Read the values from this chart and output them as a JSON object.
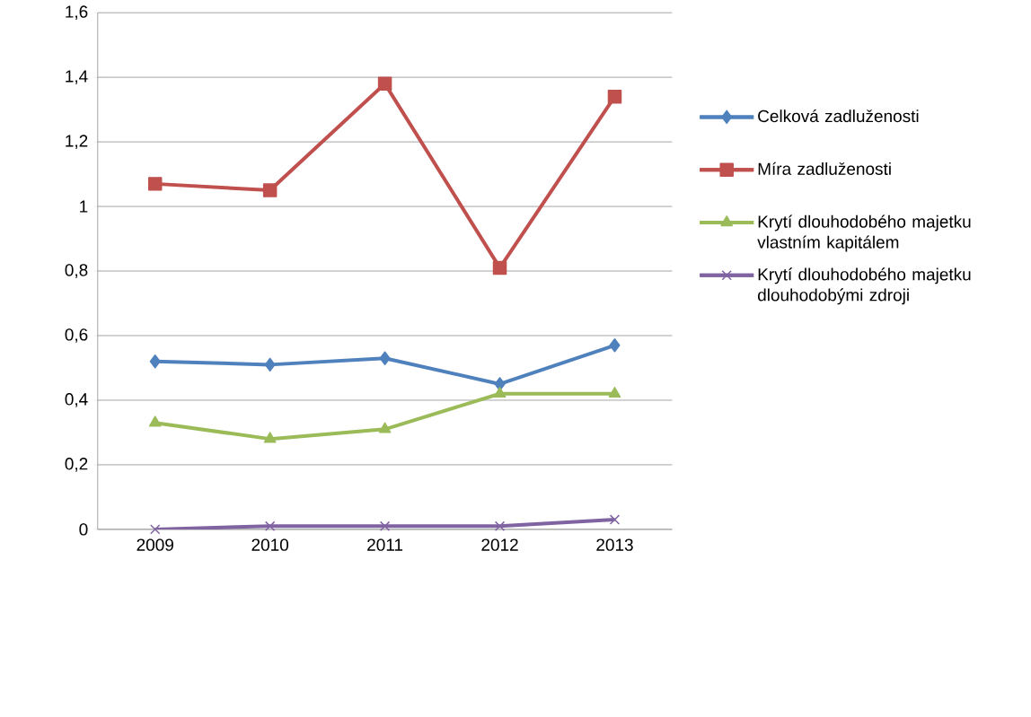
{
  "chart_data": {
    "type": "line",
    "categories": [
      "2009",
      "2010",
      "2011",
      "2012",
      "2013"
    ],
    "series": [
      {
        "name": "Celková zadluženosti",
        "color": "#4f81bd",
        "marker": "diamond",
        "values": [
          0.52,
          0.51,
          0.53,
          0.45,
          0.57
        ]
      },
      {
        "name": "Míra zadluženosti",
        "color": "#c0504d",
        "marker": "square",
        "values": [
          1.07,
          1.05,
          1.38,
          0.81,
          1.34
        ]
      },
      {
        "name": "Krytí dlouhodobého majetku vlastním kapitálem",
        "color": "#9bbb59",
        "marker": "triangle",
        "values": [
          0.33,
          0.28,
          0.31,
          0.42,
          0.42
        ]
      },
      {
        "name": "Krytí dlouhodobého majetku dlouhodobými zdroji",
        "color": "#8064a2",
        "marker": "cross",
        "values": [
          0,
          0.01,
          0.01,
          0.01,
          0.03
        ]
      }
    ],
    "ylim": [
      0,
      1.6
    ],
    "yticks": [
      0,
      {
        "value": 0.2,
        "label": "0,2"
      },
      {
        "value": 0.4,
        "label": "0,4"
      },
      {
        "value": 0.6,
        "label": "0,6"
      },
      {
        "value": 0.8,
        "label": "0,8"
      },
      1,
      {
        "value": 1.2,
        "label": "1,2"
      },
      {
        "value": 1.4,
        "label": "1,4"
      },
      {
        "value": 1.6,
        "label": "1,6"
      }
    ],
    "grid": "y",
    "legend": "right"
  }
}
